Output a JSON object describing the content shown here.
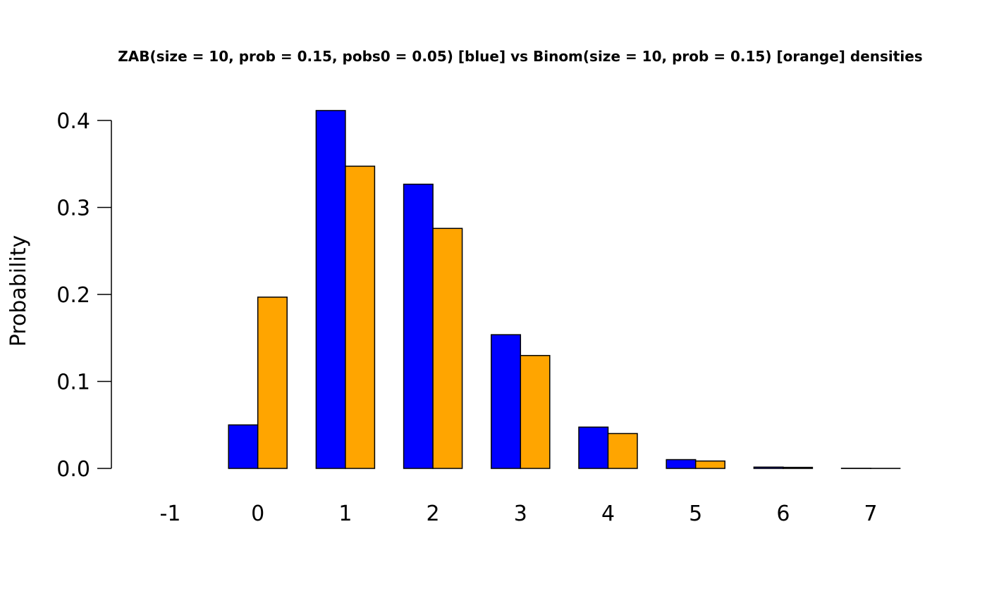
{
  "chart_data": {
    "type": "bar",
    "title": "ZAB(size = 10, prob = 0.15, pobs0 = 0.05) [blue] vs Binom(size = 10, prob = 0.15) [orange] densities",
    "xlabel": "",
    "ylabel": "Probability",
    "categories": [
      "-1",
      "0",
      "1",
      "2",
      "3",
      "4",
      "5",
      "6",
      "7"
    ],
    "ylim": [
      0,
      0.4
    ],
    "yticks": [
      "0.0",
      "0.1",
      "0.2",
      "0.3",
      "0.4"
    ],
    "grid": false,
    "legend": "none",
    "series": [
      {
        "color": "#0000ff",
        "values": [
          0,
          0.05,
          0.4114,
          0.3267,
          0.1537,
          0.0475,
          0.0101,
          0.0015,
          0.0002
        ]
      },
      {
        "color": "#ffa500",
        "values": [
          0,
          0.1969,
          0.3474,
          0.2759,
          0.1298,
          0.0401,
          0.0085,
          0.0012,
          0.0001
        ]
      }
    ]
  }
}
